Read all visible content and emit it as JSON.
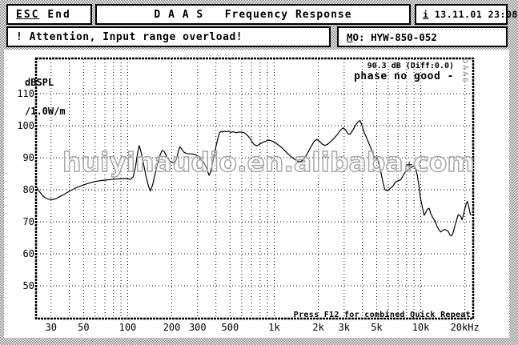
{
  "header": {
    "esc": {
      "key": "ESC",
      "label": "End"
    },
    "title": "D A A S   Frequency Response",
    "clock": {
      "key": "i",
      "value": "13.11.01 23:08"
    },
    "attention": "! Attention, Input range overload!",
    "device": {
      "key": "M",
      "key_rest": "O:",
      "value": "HYW-850-052"
    }
  },
  "plot_texts": {
    "y_axis_title_line1": "dBSPL",
    "y_axis_title_line2": "/1.0W/m",
    "level_readout": "90.3 dB (Diff:0.0)",
    "phase_status": "phase no good -",
    "daas_mark": "DAAS",
    "watermark": "huiyinaudio.en.alibaba.com",
    "footer_hint": "Press F12 for combined Quick Repeat"
  },
  "colors": {
    "curve": "#000000",
    "grid": "#000000",
    "frame": "#000000",
    "watermark_outline": "#a8a8a8",
    "dither_gray": "#7d7d7d"
  },
  "chart_data": {
    "type": "line",
    "x_scale": "log",
    "x_unit": "Hz",
    "y_unit": "dBSPL /1.0W/m",
    "x_range_hz": [
      24,
      22500
    ],
    "y_range_db": [
      40,
      120.75
    ],
    "grid": true,
    "x_ticks": [
      {
        "f": 30,
        "label": "30"
      },
      {
        "f": 50,
        "label": "50"
      },
      {
        "f": 100,
        "label": "100"
      },
      {
        "f": 200,
        "label": "200"
      },
      {
        "f": 300,
        "label": "300"
      },
      {
        "f": 500,
        "label": "500"
      },
      {
        "f": 1000,
        "label": "1k"
      },
      {
        "f": 2000,
        "label": "2k"
      },
      {
        "f": 3000,
        "label": "3k"
      },
      {
        "f": 5000,
        "label": "5k"
      },
      {
        "f": 10000,
        "label": "10k"
      },
      {
        "f": 20000,
        "label": "20kHz"
      }
    ],
    "y_ticks": [
      {
        "db": 110,
        "label": "110"
      },
      {
        "db": 100,
        "label": "100"
      },
      {
        "db": 90,
        "label": "90"
      },
      {
        "db": 80,
        "label": "80"
      },
      {
        "db": 70,
        "label": "70"
      },
      {
        "db": 60,
        "label": "60"
      },
      {
        "db": 50,
        "label": "50"
      }
    ],
    "grid_freqs": [
      30,
      40,
      50,
      60,
      70,
      80,
      90,
      100,
      200,
      300,
      400,
      500,
      600,
      700,
      800,
      900,
      1000,
      2000,
      3000,
      4000,
      5000,
      6000,
      7000,
      8000,
      9000,
      10000,
      20000
    ],
    "grid_levels_db": [
      50,
      60,
      70,
      80,
      90,
      100,
      110
    ],
    "cursor_marker": {
      "f": 8340,
      "db": 87.8
    },
    "series": [
      {
        "name": "spl-response",
        "points": [
          [
            24,
            80.6
          ],
          [
            25,
            79.4
          ],
          [
            26.5,
            78.0
          ],
          [
            28,
            77.2
          ],
          [
            30,
            76.9
          ],
          [
            32,
            77.1
          ],
          [
            34,
            77.7
          ],
          [
            37,
            78.6
          ],
          [
            40,
            79.5
          ],
          [
            44,
            80.5
          ],
          [
            48,
            81.2
          ],
          [
            53,
            81.9
          ],
          [
            58,
            82.4
          ],
          [
            64,
            82.8
          ],
          [
            70,
            83.0
          ],
          [
            78,
            83.2
          ],
          [
            88,
            83.4
          ],
          [
            97,
            83.5
          ],
          [
            104,
            83.2
          ],
          [
            109,
            84.0
          ],
          [
            113,
            87.0
          ],
          [
            117,
            91.5
          ],
          [
            120,
            93.8
          ],
          [
            124,
            91.5
          ],
          [
            129,
            87.5
          ],
          [
            134,
            83.8
          ],
          [
            139,
            81.0
          ],
          [
            143,
            79.6
          ],
          [
            148,
            81.5
          ],
          [
            154,
            85.0
          ],
          [
            161,
            88.5
          ],
          [
            167,
            91.0
          ],
          [
            172,
            92.3
          ],
          [
            178,
            91.8
          ],
          [
            185,
            90.3
          ],
          [
            193,
            89.0
          ],
          [
            202,
            88.5
          ],
          [
            210,
            88.4
          ],
          [
            216,
            89.8
          ],
          [
            222,
            92.0
          ],
          [
            227,
            93.4
          ],
          [
            233,
            92.8
          ],
          [
            241,
            91.8
          ],
          [
            252,
            91.3
          ],
          [
            265,
            91.2
          ],
          [
            280,
            91.1
          ],
          [
            295,
            90.8
          ],
          [
            308,
            90.0
          ],
          [
            320,
            89.2
          ],
          [
            330,
            88.6
          ],
          [
            341,
            87.3
          ],
          [
            351,
            85.8
          ],
          [
            359,
            84.5
          ],
          [
            367,
            85.3
          ],
          [
            377,
            87.5
          ],
          [
            389,
            90.5
          ],
          [
            402,
            93.8
          ],
          [
            414,
            96.3
          ],
          [
            424,
            97.8
          ],
          [
            432,
            98.2
          ],
          [
            443,
            98.0
          ],
          [
            455,
            98.3
          ],
          [
            470,
            98.1
          ],
          [
            487,
            98.3
          ],
          [
            505,
            97.9
          ],
          [
            525,
            98.1
          ],
          [
            550,
            97.8
          ],
          [
            575,
            98.0
          ],
          [
            600,
            98.0
          ],
          [
            625,
            97.8
          ],
          [
            650,
            97.2
          ],
          [
            680,
            96.2
          ],
          [
            705,
            95.0
          ],
          [
            730,
            94.1
          ],
          [
            762,
            93.7
          ],
          [
            800,
            94.3
          ],
          [
            845,
            94.9
          ],
          [
            890,
            95.3
          ],
          [
            920,
            95.5
          ],
          [
            955,
            95.3
          ],
          [
            1000,
            94.9
          ],
          [
            1060,
            94.1
          ],
          [
            1130,
            93.1
          ],
          [
            1200,
            91.9
          ],
          [
            1270,
            90.8
          ],
          [
            1350,
            89.8
          ],
          [
            1430,
            89.0
          ],
          [
            1500,
            88.7
          ],
          [
            1580,
            89.3
          ],
          [
            1680,
            91.2
          ],
          [
            1780,
            93.4
          ],
          [
            1880,
            95.2
          ],
          [
            1950,
            95.7
          ],
          [
            2030,
            95.2
          ],
          [
            2120,
            94.3
          ],
          [
            2220,
            93.8
          ],
          [
            2330,
            94.3
          ],
          [
            2450,
            95.2
          ],
          [
            2570,
            96.1
          ],
          [
            2700,
            97.3
          ],
          [
            2830,
            98.6
          ],
          [
            2950,
            99.3
          ],
          [
            3060,
            98.8
          ],
          [
            3180,
            97.5
          ],
          [
            3300,
            97.3
          ],
          [
            3450,
            98.7
          ],
          [
            3600,
            100.2
          ],
          [
            3750,
            101.3
          ],
          [
            3850,
            101.6
          ],
          [
            3950,
            100.4
          ],
          [
            4100,
            98.0
          ],
          [
            4300,
            95.9
          ],
          [
            4550,
            93.2
          ],
          [
            4800,
            90.3
          ],
          [
            4950,
            89.8
          ],
          [
            5050,
            90.0
          ],
          [
            5200,
            87.8
          ],
          [
            5350,
            85.4
          ],
          [
            5550,
            81.8
          ],
          [
            5700,
            80.0
          ],
          [
            5900,
            79.7
          ],
          [
            6100,
            80.2
          ],
          [
            6400,
            80.9
          ],
          [
            6700,
            82.3
          ],
          [
            7000,
            82.8
          ],
          [
            7300,
            83.1
          ],
          [
            7600,
            84.5
          ],
          [
            7900,
            85.8
          ],
          [
            8300,
            86.4
          ],
          [
            8700,
            87.1
          ],
          [
            9000,
            87.4
          ],
          [
            9250,
            86.3
          ],
          [
            9450,
            84.8
          ],
          [
            9700,
            81.5
          ],
          [
            9950,
            77.5
          ],
          [
            10250,
            74.6
          ],
          [
            10550,
            72.0
          ],
          [
            10800,
            72.8
          ],
          [
            11100,
            73.9
          ],
          [
            11400,
            74.2
          ],
          [
            11700,
            72.6
          ],
          [
            12100,
            71.2
          ],
          [
            12500,
            70.3
          ],
          [
            12900,
            68.6
          ],
          [
            13300,
            67.5
          ],
          [
            13700,
            66.8
          ],
          [
            14100,
            67.2
          ],
          [
            14500,
            67.6
          ],
          [
            14900,
            67.4
          ],
          [
            15400,
            67.0
          ],
          [
            15800,
            65.9
          ],
          [
            16200,
            65.6
          ],
          [
            16600,
            66.4
          ],
          [
            17000,
            68.3
          ],
          [
            17500,
            70.3
          ],
          [
            18000,
            72.2
          ],
          [
            18400,
            72.0
          ],
          [
            18800,
            71.6
          ],
          [
            19100,
            70.6
          ],
          [
            19500,
            71.8
          ],
          [
            20000,
            74.0
          ],
          [
            20500,
            75.9
          ],
          [
            20800,
            76.3
          ],
          [
            21200,
            75.0
          ],
          [
            21600,
            73.0
          ],
          [
            22000,
            72.0
          ]
        ]
      }
    ]
  }
}
